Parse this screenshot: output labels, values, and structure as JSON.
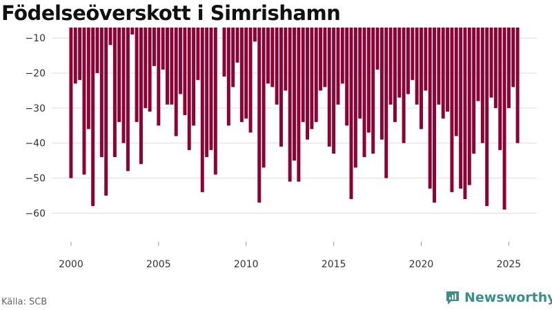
{
  "chart_data": {
    "type": "bar",
    "title": "Födelseöverskott i Simrishamn",
    "xlabel": "",
    "ylabel": "",
    "xlim": [
      1998.9,
      2026.6
    ],
    "ylim": [
      -68,
      -7
    ],
    "yticks": [
      -10,
      -20,
      -30,
      -40,
      -50,
      -60
    ],
    "xticks": [
      "2000",
      "2005",
      "2010",
      "2015",
      "2020",
      "2025"
    ],
    "grid": "horizontal",
    "legend": "none",
    "bar_color": "#8f0033",
    "start": 2000,
    "step": 0.25,
    "values": [
      -50,
      -23,
      -22,
      -49,
      -36,
      -58,
      -20,
      -44,
      -55,
      -12,
      -44,
      -34,
      -40,
      -48,
      -9,
      -34,
      -46,
      -30,
      -31,
      -18,
      -35,
      -19,
      -29,
      -29,
      -38,
      -26,
      -32,
      -42,
      -35,
      -22,
      -54,
      -44,
      -42,
      -49,
      null,
      -21,
      -35,
      -24,
      -17,
      -34,
      -33,
      -37,
      -11,
      -57,
      -47,
      -23,
      -24,
      -29,
      -41,
      -25,
      -51,
      -45,
      -51,
      -34,
      -39,
      -36,
      -34,
      -25,
      -24,
      -41,
      -43,
      -29,
      -23,
      -35,
      -56,
      -47,
      -33,
      -44,
      -37,
      -43,
      -19,
      -39,
      -50,
      -29,
      -34,
      -27,
      -40,
      -26,
      -22,
      -29,
      -36,
      -25,
      -53,
      -57,
      -29,
      -33,
      -31,
      -54,
      -38,
      -53,
      -56,
      -52,
      -43,
      -28,
      -40,
      -58,
      -27,
      -30,
      -42,
      -59,
      -30,
      -24,
      -40
    ]
  },
  "footer": {
    "source": "Källa: SCB",
    "brand": "Newsworthy",
    "brand_color": "#3a8f88",
    "brand_icon": "newsworthy-logo-icon"
  }
}
